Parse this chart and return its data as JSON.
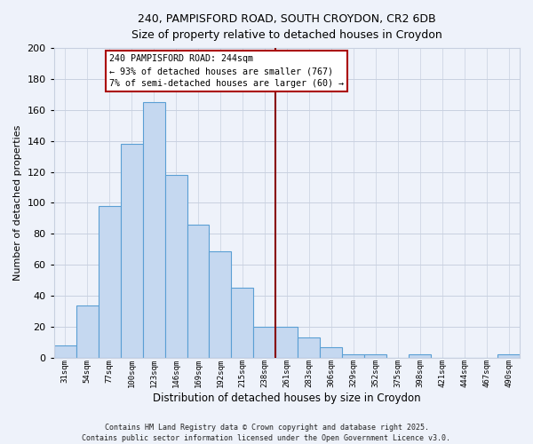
{
  "title1": "240, PAMPISFORD ROAD, SOUTH CROYDON, CR2 6DB",
  "title2": "Size of property relative to detached houses in Croydon",
  "xlabel": "Distribution of detached houses by size in Croydon",
  "ylabel": "Number of detached properties",
  "bar_labels": [
    "31sqm",
    "54sqm",
    "77sqm",
    "100sqm",
    "123sqm",
    "146sqm",
    "169sqm",
    "192sqm",
    "215sqm",
    "238sqm",
    "261sqm",
    "283sqm",
    "306sqm",
    "329sqm",
    "352sqm",
    "375sqm",
    "398sqm",
    "421sqm",
    "444sqm",
    "467sqm",
    "490sqm"
  ],
  "bar_values": [
    8,
    34,
    98,
    138,
    165,
    118,
    86,
    69,
    45,
    20,
    20,
    13,
    7,
    2,
    2,
    0,
    2,
    0,
    0,
    0,
    2
  ],
  "bar_color": "#c5d8f0",
  "bar_edge_color": "#5a9fd4",
  "vline_x": 9.5,
  "vline_color": "#880000",
  "annotation_text": "240 PAMPISFORD ROAD: 244sqm\n← 93% of detached houses are smaller (767)\n7% of semi-detached houses are larger (60) →",
  "annotation_box_color": "#ffffff",
  "annotation_box_edge": "#aa0000",
  "ylim": [
    0,
    200
  ],
  "yticks": [
    0,
    20,
    40,
    60,
    80,
    100,
    120,
    140,
    160,
    180,
    200
  ],
  "footer1": "Contains HM Land Registry data © Crown copyright and database right 2025.",
  "footer2": "Contains public sector information licensed under the Open Government Licence v3.0.",
  "bg_color": "#eef2fa",
  "grid_color": "#c8d0e0"
}
